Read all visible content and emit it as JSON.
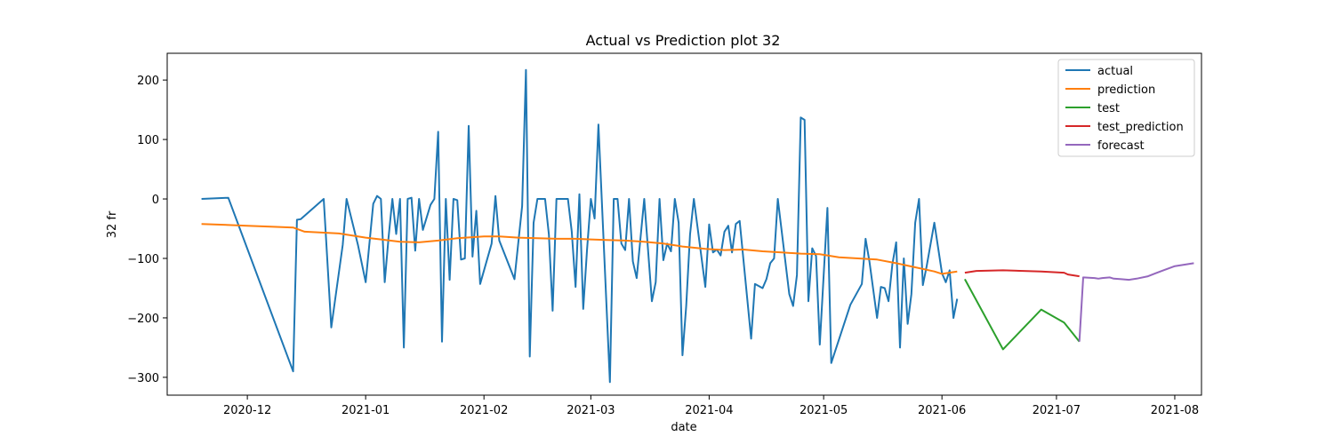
{
  "chart_data": {
    "type": "line",
    "title": "Actual vs Prediction plot 32",
    "xlabel": "date",
    "ylabel": "32 fr",
    "xlim": [
      "2020-11-10",
      "2021-08-08"
    ],
    "ylim": [
      -330,
      245
    ],
    "x_ticks": [
      "2020-12",
      "2021-01",
      "2021-02",
      "2021-03",
      "2021-04",
      "2021-05",
      "2021-06",
      "2021-07",
      "2021-08"
    ],
    "y_ticks": [
      -300,
      -200,
      -100,
      0,
      100,
      200
    ],
    "grid": false,
    "legend_position": "top-right",
    "series": [
      {
        "name": "actual",
        "color": "#1f77b4",
        "points": [
          [
            "2020-11-19",
            0
          ],
          [
            "2020-11-26",
            2
          ],
          [
            "2020-12-13",
            -290
          ],
          [
            "2020-12-14",
            -35
          ],
          [
            "2020-12-15",
            -34
          ],
          [
            "2020-12-21",
            0
          ],
          [
            "2020-12-23",
            -216
          ],
          [
            "2020-12-26",
            -77
          ],
          [
            "2020-12-27",
            0
          ],
          [
            "2020-12-30",
            -78
          ],
          [
            "2021-01-01",
            -140
          ],
          [
            "2021-01-03",
            -8
          ],
          [
            "2021-01-04",
            5
          ],
          [
            "2021-01-05",
            0
          ],
          [
            "2021-01-06",
            -140
          ],
          [
            "2021-01-07",
            -65
          ],
          [
            "2021-01-08",
            0
          ],
          [
            "2021-01-09",
            -59
          ],
          [
            "2021-01-10",
            0
          ],
          [
            "2021-01-11",
            -250
          ],
          [
            "2021-01-12",
            0
          ],
          [
            "2021-01-13",
            2
          ],
          [
            "2021-01-14",
            -87
          ],
          [
            "2021-01-15",
            0
          ],
          [
            "2021-01-16",
            -52
          ],
          [
            "2021-01-18",
            -10
          ],
          [
            "2021-01-19",
            0
          ],
          [
            "2021-01-20",
            113
          ],
          [
            "2021-01-21",
            -240
          ],
          [
            "2021-01-22",
            0
          ],
          [
            "2021-01-23",
            -136
          ],
          [
            "2021-01-24",
            0
          ],
          [
            "2021-01-25",
            -2
          ],
          [
            "2021-01-26",
            -102
          ],
          [
            "2021-01-27",
            -100
          ],
          [
            "2021-01-28",
            123
          ],
          [
            "2021-01-29",
            -97
          ],
          [
            "2021-01-30",
            -20
          ],
          [
            "2021-01-31",
            -143
          ],
          [
            "2021-02-03",
            -75
          ],
          [
            "2021-02-04",
            5
          ],
          [
            "2021-02-05",
            -70
          ],
          [
            "2021-02-09",
            -135
          ],
          [
            "2021-02-11",
            -12
          ],
          [
            "2021-02-12",
            217
          ],
          [
            "2021-02-13",
            -265
          ],
          [
            "2021-02-14",
            -40
          ],
          [
            "2021-02-15",
            0
          ],
          [
            "2021-02-17",
            0
          ],
          [
            "2021-02-18",
            -60
          ],
          [
            "2021-02-19",
            -188
          ],
          [
            "2021-02-20",
            0
          ],
          [
            "2021-02-23",
            0
          ],
          [
            "2021-02-24",
            -55
          ],
          [
            "2021-02-25",
            -148
          ],
          [
            "2021-02-26",
            8
          ],
          [
            "2021-02-27",
            -185
          ],
          [
            "2021-02-28",
            -85
          ],
          [
            "2021-03-01",
            0
          ],
          [
            "2021-03-02",
            -33
          ],
          [
            "2021-03-03",
            125
          ],
          [
            "2021-03-06",
            -308
          ],
          [
            "2021-03-07",
            0
          ],
          [
            "2021-03-08",
            0
          ],
          [
            "2021-03-09",
            -75
          ],
          [
            "2021-03-10",
            -86
          ],
          [
            "2021-03-11",
            0
          ],
          [
            "2021-03-12",
            -105
          ],
          [
            "2021-03-13",
            -133
          ],
          [
            "2021-03-15",
            0
          ],
          [
            "2021-03-17",
            -172
          ],
          [
            "2021-03-18",
            -140
          ],
          [
            "2021-03-19",
            0
          ],
          [
            "2021-03-20",
            -103
          ],
          [
            "2021-03-21",
            -75
          ],
          [
            "2021-03-22",
            -88
          ],
          [
            "2021-03-23",
            0
          ],
          [
            "2021-03-24",
            -40
          ],
          [
            "2021-03-25",
            -263
          ],
          [
            "2021-03-26",
            -180
          ],
          [
            "2021-03-27",
            -60
          ],
          [
            "2021-03-28",
            0
          ],
          [
            "2021-03-31",
            -148
          ],
          [
            "2021-04-01",
            -43
          ],
          [
            "2021-04-02",
            -90
          ],
          [
            "2021-04-03",
            -85
          ],
          [
            "2021-04-04",
            -95
          ],
          [
            "2021-04-05",
            -55
          ],
          [
            "2021-04-06",
            -45
          ],
          [
            "2021-04-07",
            -90
          ],
          [
            "2021-04-08",
            -42
          ],
          [
            "2021-04-09",
            -37
          ],
          [
            "2021-04-12",
            -235
          ],
          [
            "2021-04-13",
            -143
          ],
          [
            "2021-04-15",
            -150
          ],
          [
            "2021-04-16",
            -135
          ],
          [
            "2021-04-17",
            -108
          ],
          [
            "2021-04-18",
            -100
          ],
          [
            "2021-04-19",
            0
          ],
          [
            "2021-04-22",
            -160
          ],
          [
            "2021-04-23",
            -180
          ],
          [
            "2021-04-24",
            -128
          ],
          [
            "2021-04-25",
            137
          ],
          [
            "2021-04-26",
            133
          ],
          [
            "2021-04-27",
            -172
          ],
          [
            "2021-04-28",
            -83
          ],
          [
            "2021-04-29",
            -96
          ],
          [
            "2021-04-30",
            -245
          ],
          [
            "2021-05-02",
            -15
          ],
          [
            "2021-05-03",
            -276
          ],
          [
            "2021-05-08",
            -178
          ],
          [
            "2021-05-11",
            -143
          ],
          [
            "2021-05-12",
            -67
          ],
          [
            "2021-05-13",
            -105
          ],
          [
            "2021-05-15",
            -200
          ],
          [
            "2021-05-16",
            -148
          ],
          [
            "2021-05-17",
            -150
          ],
          [
            "2021-05-18",
            -172
          ],
          [
            "2021-05-19",
            -110
          ],
          [
            "2021-05-20",
            -73
          ],
          [
            "2021-05-21",
            -250
          ],
          [
            "2021-05-22",
            -100
          ],
          [
            "2021-05-23",
            -210
          ],
          [
            "2021-05-24",
            -160
          ],
          [
            "2021-05-25",
            -40
          ],
          [
            "2021-05-26",
            0
          ],
          [
            "2021-05-27",
            -145
          ],
          [
            "2021-05-28",
            -113
          ],
          [
            "2021-05-30",
            -40
          ],
          [
            "2021-06-01",
            -125
          ],
          [
            "2021-06-02",
            -140
          ],
          [
            "2021-06-03",
            -120
          ],
          [
            "2021-06-04",
            -200
          ],
          [
            "2021-06-05",
            -168
          ]
        ]
      },
      {
        "name": "prediction",
        "color": "#ff7f0e",
        "points": [
          [
            "2020-11-19",
            -42
          ],
          [
            "2020-12-01",
            -45
          ],
          [
            "2020-12-13",
            -48
          ],
          [
            "2020-12-16",
            -55
          ],
          [
            "2020-12-25",
            -58
          ],
          [
            "2021-01-01",
            -65
          ],
          [
            "2021-01-05",
            -68
          ],
          [
            "2021-01-10",
            -72
          ],
          [
            "2021-01-15",
            -73
          ],
          [
            "2021-01-20",
            -70
          ],
          [
            "2021-01-25",
            -66
          ],
          [
            "2021-02-01",
            -63
          ],
          [
            "2021-02-05",
            -63
          ],
          [
            "2021-02-10",
            -65
          ],
          [
            "2021-02-15",
            -66
          ],
          [
            "2021-02-20",
            -67
          ],
          [
            "2021-02-25",
            -67
          ],
          [
            "2021-03-01",
            -68
          ],
          [
            "2021-03-05",
            -69
          ],
          [
            "2021-03-10",
            -70
          ],
          [
            "2021-03-15",
            -72
          ],
          [
            "2021-03-20",
            -75
          ],
          [
            "2021-03-25",
            -80
          ],
          [
            "2021-03-31",
            -84
          ],
          [
            "2021-04-05",
            -86
          ],
          [
            "2021-04-10",
            -85
          ],
          [
            "2021-04-15",
            -88
          ],
          [
            "2021-04-20",
            -90
          ],
          [
            "2021-04-25",
            -92
          ],
          [
            "2021-04-30",
            -93
          ],
          [
            "2021-05-05",
            -98
          ],
          [
            "2021-05-10",
            -100
          ],
          [
            "2021-05-15",
            -102
          ],
          [
            "2021-05-20",
            -108
          ],
          [
            "2021-05-25",
            -115
          ],
          [
            "2021-05-30",
            -122
          ],
          [
            "2021-06-01",
            -126
          ],
          [
            "2021-06-05",
            -122
          ]
        ]
      },
      {
        "name": "test",
        "color": "#2ca02c",
        "points": [
          [
            "2021-06-07",
            -135
          ],
          [
            "2021-06-17",
            -253
          ],
          [
            "2021-06-27",
            -186
          ],
          [
            "2021-07-03",
            -208
          ],
          [
            "2021-07-07",
            -240
          ]
        ]
      },
      {
        "name": "test_prediction",
        "color": "#d62728",
        "points": [
          [
            "2021-06-07",
            -124
          ],
          [
            "2021-06-10",
            -121
          ],
          [
            "2021-06-17",
            -120
          ],
          [
            "2021-06-27",
            -122
          ],
          [
            "2021-07-03",
            -124
          ],
          [
            "2021-07-04",
            -127
          ],
          [
            "2021-07-07",
            -130
          ]
        ]
      },
      {
        "name": "forecast",
        "color": "#9467bd",
        "points": [
          [
            "2021-07-07",
            -240
          ],
          [
            "2021-07-08",
            -132
          ],
          [
            "2021-07-11",
            -133
          ],
          [
            "2021-07-12",
            -134
          ],
          [
            "2021-07-13",
            -133
          ],
          [
            "2021-07-15",
            -132
          ],
          [
            "2021-07-16",
            -134
          ],
          [
            "2021-07-18",
            -135
          ],
          [
            "2021-07-20",
            -136
          ],
          [
            "2021-07-22",
            -134
          ],
          [
            "2021-07-25",
            -130
          ],
          [
            "2021-07-27",
            -125
          ],
          [
            "2021-07-29",
            -120
          ],
          [
            "2021-08-01",
            -113
          ],
          [
            "2021-08-06",
            -108
          ]
        ]
      }
    ]
  }
}
